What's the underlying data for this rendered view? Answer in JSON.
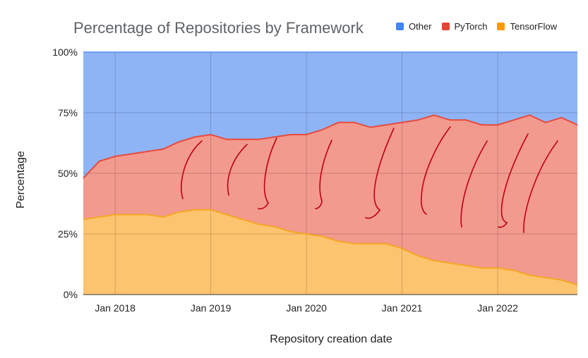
{
  "chart_data": {
    "type": "area",
    "stacked": true,
    "title": "Percentage of Repositories by Framework",
    "xlabel": "Repository creation date",
    "ylabel": "Percentage",
    "legend_position": "top-right",
    "x": [
      "2017-09",
      "2017-11",
      "2018-01",
      "2018-03",
      "2018-05",
      "2018-07",
      "2018-09",
      "2018-11",
      "2019-01",
      "2019-03",
      "2019-05",
      "2019-07",
      "2019-09",
      "2019-11",
      "2020-01",
      "2020-03",
      "2020-05",
      "2020-07",
      "2020-09",
      "2020-11",
      "2021-01",
      "2021-03",
      "2021-05",
      "2021-07",
      "2021-09",
      "2021-11",
      "2022-01",
      "2022-03",
      "2022-05",
      "2022-07",
      "2022-09",
      "2022-11"
    ],
    "x_ticks": [
      "Jan 2018",
      "Jan 2019",
      "Jan 2020",
      "Jan 2021",
      "Jan 2022"
    ],
    "y_ticks": [
      "0%",
      "25%",
      "50%",
      "75%",
      "100%"
    ],
    "ylim": [
      0,
      100
    ],
    "series": [
      {
        "name": "TensorFlow",
        "color": "#ff9900",
        "values": [
          31,
          32,
          33,
          33,
          33,
          32,
          34,
          35,
          35,
          33,
          31,
          29,
          28,
          26,
          25,
          24,
          22,
          21,
          21,
          21,
          19,
          16,
          14,
          13,
          12,
          11,
          11,
          10,
          8,
          7,
          6,
          4
        ]
      },
      {
        "name": "PyTorch",
        "color": "#ea4335",
        "values": [
          17,
          23,
          24,
          25,
          26,
          28,
          29,
          30,
          31,
          31,
          33,
          35,
          37,
          40,
          41,
          44,
          49,
          50,
          48,
          49,
          52,
          56,
          60,
          59,
          60,
          59,
          59,
          62,
          66,
          64,
          67,
          66
        ]
      },
      {
        "name": "Other",
        "color": "#4285f4",
        "values": [
          52,
          45,
          43,
          42,
          41,
          40,
          37,
          35,
          34,
          36,
          36,
          36,
          35,
          34,
          34,
          32,
          29,
          29,
          31,
          30,
          29,
          28,
          26,
          28,
          28,
          30,
          30,
          28,
          26,
          29,
          27,
          30
        ]
      }
    ]
  }
}
